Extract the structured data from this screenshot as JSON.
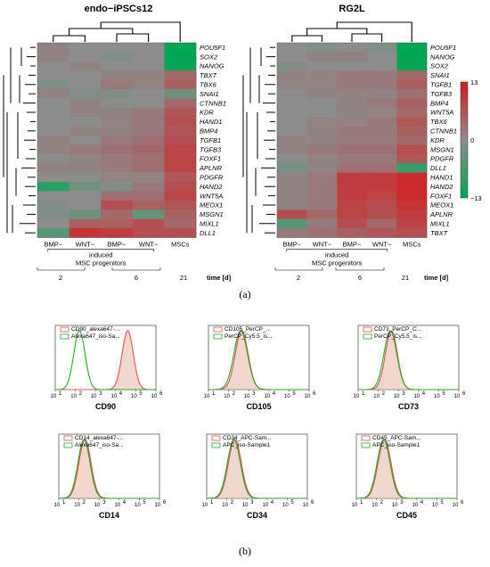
{
  "captions": {
    "a": "(a)",
    "b": "(b)"
  },
  "time_axis": {
    "days": [
      "2",
      "6",
      "21"
    ],
    "unit_label": "time [d]"
  },
  "color_scale": {
    "max": "13",
    "mid": "0",
    "min": "−13",
    "high_color": "#d7191c",
    "mid_color": "#8c8c8c",
    "low_color": "#00a651"
  },
  "chart_data": [
    {
      "type": "heatmap",
      "title": "endo−iPSCs12",
      "columns": [
        "BMP−",
        "WNT−",
        "BMP−",
        "WNT−",
        "MSCs"
      ],
      "group_label": "induced\nMSC progenitors",
      "group_label_lines": [
        "induced",
        "MSC progenitors"
      ],
      "rows": [
        "POU5F1",
        "SOX2",
        "NANOG",
        "TBXT",
        "TBX6",
        "SNAI1",
        "CTNNB1",
        "KDR",
        "HAND1",
        "BMP4",
        "TGFB1",
        "TGFB3",
        "FOXF1",
        "APLNR",
        "PDGFR",
        "HAND2",
        "WNT5A",
        "MEOX1",
        "MSGN1",
        "MIXL1",
        "DLL1"
      ],
      "values": [
        [
          1,
          0,
          0,
          0,
          -13
        ],
        [
          1,
          0,
          -1,
          0,
          -13
        ],
        [
          0,
          1,
          0,
          0,
          -12
        ],
        [
          0,
          0,
          1,
          1,
          4
        ],
        [
          -1,
          0,
          2,
          1,
          5
        ],
        [
          1,
          -1,
          -1,
          0,
          -3
        ],
        [
          0,
          1,
          0,
          0,
          4
        ],
        [
          0,
          1,
          1,
          2,
          6
        ],
        [
          0,
          0,
          1,
          2,
          7
        ],
        [
          0,
          1,
          1,
          2,
          6
        ],
        [
          1,
          0,
          2,
          3,
          7
        ],
        [
          1,
          2,
          3,
          4,
          8
        ],
        [
          0,
          1,
          2,
          3,
          8
        ],
        [
          1,
          1,
          2,
          3,
          8
        ],
        [
          0,
          0,
          1,
          1,
          6
        ],
        [
          -9,
          -3,
          -1,
          2,
          7
        ],
        [
          0,
          0,
          3,
          3,
          8
        ],
        [
          -1,
          0,
          7,
          5,
          6
        ],
        [
          -1,
          -3,
          4,
          -4,
          5
        ],
        [
          0,
          5,
          5,
          7,
          4
        ],
        [
          -5,
          10,
          9,
          7,
          7
        ]
      ]
    },
    {
      "type": "heatmap",
      "title": "RG2L",
      "columns": [
        "BMP−",
        "WNT−",
        "BMP−",
        "WNT−",
        "MSCs"
      ],
      "group_label": "induced\nMSC progenitors",
      "group_label_lines": [
        "induced",
        "MSC progenitors"
      ],
      "rows": [
        "POU5F1",
        "NANOG",
        "SOX2",
        "SNAI1",
        "TGFB1",
        "TGFB3",
        "BMP4",
        "WNT5A",
        "TBX6",
        "CTNNB1",
        "KDR",
        "MSGN1",
        "PDGFR",
        "DLL1",
        "HAND1",
        "HAND2",
        "FOXF1",
        "MEOX1",
        "APLNR",
        "MIXL1",
        "TBXT"
      ],
      "values": [
        [
          0,
          -1,
          0,
          -1,
          -13
        ],
        [
          0,
          1,
          1,
          0,
          -13
        ],
        [
          -1,
          0,
          0,
          0,
          -12
        ],
        [
          1,
          1,
          2,
          2,
          4
        ],
        [
          1,
          1,
          2,
          2,
          5
        ],
        [
          0,
          1,
          1,
          1,
          3
        ],
        [
          0,
          0,
          1,
          2,
          5
        ],
        [
          0,
          0,
          1,
          1,
          4
        ],
        [
          0,
          1,
          1,
          2,
          6
        ],
        [
          0,
          1,
          2,
          2,
          5
        ],
        [
          1,
          1,
          2,
          2,
          4
        ],
        [
          1,
          2,
          3,
          3,
          7
        ],
        [
          0,
          1,
          2,
          2,
          6
        ],
        [
          -2,
          1,
          3,
          3,
          -8
        ],
        [
          1,
          2,
          9,
          9,
          11
        ],
        [
          1,
          2,
          9,
          9,
          11
        ],
        [
          1,
          2,
          9,
          8,
          11
        ],
        [
          1,
          2,
          8,
          7,
          10
        ],
        [
          7,
          4,
          8,
          7,
          9
        ],
        [
          -5,
          2,
          7,
          4,
          8
        ],
        [
          2,
          3,
          5,
          6,
          7
        ]
      ]
    },
    {
      "type": "histogram",
      "title": "CD90",
      "legend": [
        "CD90_alexa647-...",
        "Alexa647_iso-Sa..."
      ],
      "x_tick_labels": [
        "10",
        "10",
        "10",
        "10",
        "10",
        "10"
      ],
      "x_tick_exponents": [
        "1",
        "2",
        "3",
        "4",
        "5",
        "6"
      ],
      "series": [
        {
          "peak_log10": 4.6,
          "width": 0.28,
          "color": "#e05050"
        },
        {
          "peak_log10": 2.2,
          "width": 0.28,
          "color": "#22aa22"
        }
      ]
    },
    {
      "type": "histogram",
      "title": "CD105",
      "legend": [
        "CD105_PerCP_...",
        "PerCP_Cy5.5_is..."
      ],
      "x_tick_labels": [
        "10",
        "10",
        "10",
        "10",
        "10",
        "10"
      ],
      "x_tick_exponents": [
        "1",
        "2",
        "3",
        "4",
        "5",
        "6"
      ],
      "series": [
        {
          "peak_log10": 2.65,
          "width": 0.32,
          "color": "#e05050"
        },
        {
          "peak_log10": 2.6,
          "width": 0.34,
          "color": "#22aa22"
        }
      ]
    },
    {
      "type": "histogram",
      "title": "CD73",
      "legend": [
        "CD73_PerCP_C...",
        "PerCP_Cy5.5_is..."
      ],
      "x_tick_labels": [
        "10",
        "10",
        "10",
        "10",
        "10",
        "10"
      ],
      "x_tick_exponents": [
        "1",
        "2",
        "3",
        "4",
        "5",
        "6"
      ],
      "series": [
        {
          "peak_log10": 2.65,
          "width": 0.3,
          "color": "#e05050"
        },
        {
          "peak_log10": 2.6,
          "width": 0.32,
          "color": "#22aa22"
        }
      ]
    },
    {
      "type": "histogram",
      "title": "CD14",
      "legend": [
        "CD14_alexa647-...",
        "Alexa647_iso-Sa..."
      ],
      "x_tick_labels": [
        "10",
        "10",
        "10",
        "10",
        "10",
        "10"
      ],
      "x_tick_exponents": [
        "1",
        "2",
        "3",
        "4",
        "5",
        "6"
      ],
      "series": [
        {
          "peak_log10": 2.3,
          "width": 0.3,
          "color": "#e05050"
        },
        {
          "peak_log10": 2.25,
          "width": 0.3,
          "color": "#22aa22"
        }
      ]
    },
    {
      "type": "histogram",
      "title": "CD34",
      "legend": [
        "CD34_APC-Sam...",
        "APC_iso-Sample1"
      ],
      "x_tick_labels": [
        "10",
        "10",
        "10",
        "10",
        "10",
        "10"
      ],
      "x_tick_exponents": [
        "1",
        "2",
        "3",
        "4",
        "5",
        "6"
      ],
      "series": [
        {
          "peak_log10": 2.4,
          "width": 0.32,
          "color": "#e05050"
        },
        {
          "peak_log10": 2.35,
          "width": 0.32,
          "color": "#22aa22"
        }
      ]
    },
    {
      "type": "histogram",
      "title": "CD45",
      "legend": [
        "CD45_APC-Sam...",
        "APC_iso-Sample1"
      ],
      "x_tick_labels": [
        "10",
        "10",
        "10",
        "10",
        "10",
        "10"
      ],
      "x_tick_exponents": [
        "1",
        "2",
        "3",
        "4",
        "5",
        "6"
      ],
      "series": [
        {
          "peak_log10": 2.4,
          "width": 0.32,
          "color": "#e05050"
        },
        {
          "peak_log10": 2.35,
          "width": 0.32,
          "color": "#22aa22"
        }
      ]
    }
  ]
}
